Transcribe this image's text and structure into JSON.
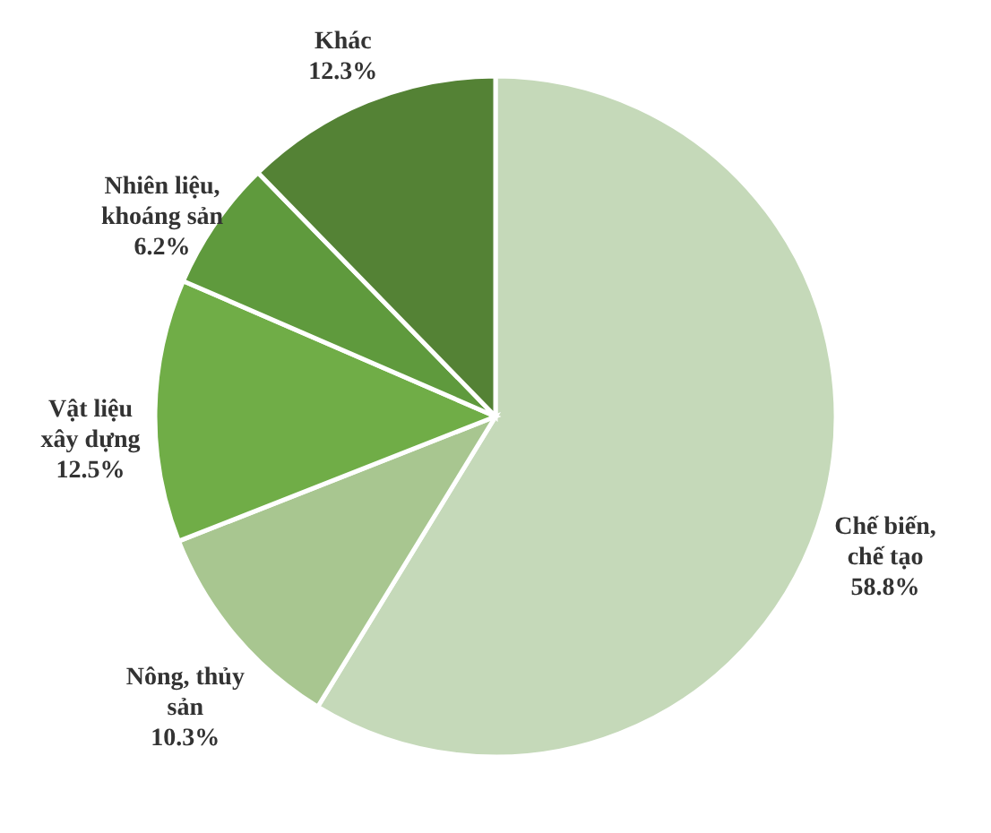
{
  "chart_data": {
    "type": "pie",
    "categories": [
      "Chế biến, chế tạo",
      "Nông, thủy sản",
      "Vật liệu xây dựng",
      "Nhiên liệu, khoáng sản",
      "Khác"
    ],
    "values": [
      58.8,
      10.3,
      12.5,
      6.2,
      12.3
    ],
    "value_labels": [
      "58.8%",
      "10.3%",
      "12.5%",
      "6.2%",
      "12.3%"
    ],
    "colors": [
      "#c5d9b9",
      "#a8c690",
      "#70ad47",
      "#5f9a3d",
      "#548235"
    ]
  }
}
